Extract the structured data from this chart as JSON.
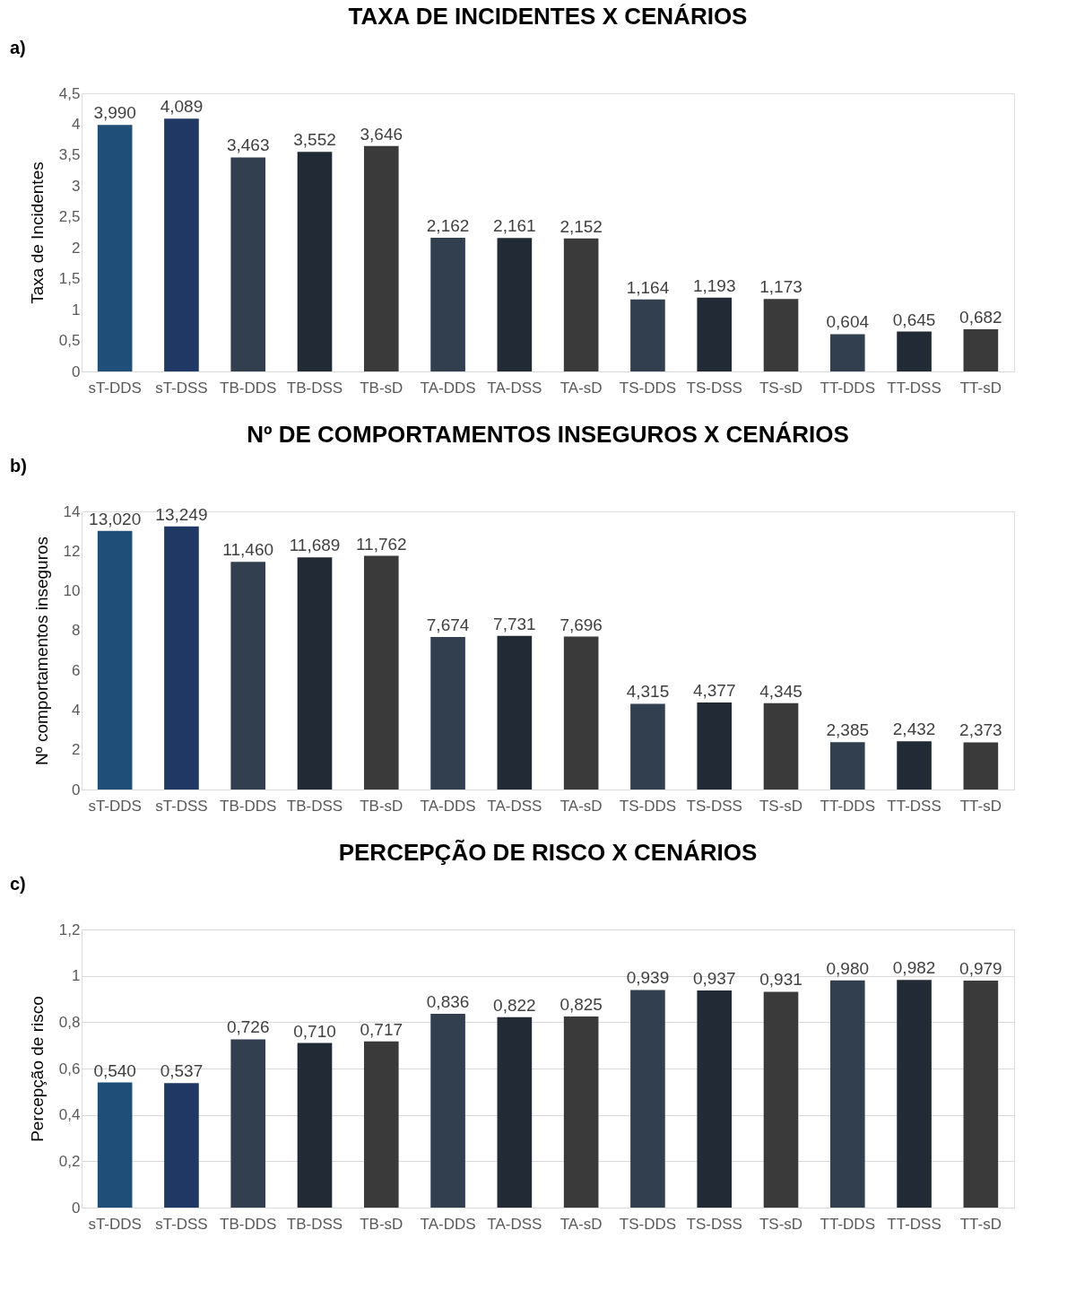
{
  "chart_data": [
    {
      "type": "bar",
      "title": "TAXA DE INCIDENTES X CENÁRIOS",
      "ylabel": "Taxa de Incidentes",
      "annotations": [
        "a)"
      ],
      "categories": [
        "sT-DDS",
        "sT-DSS",
        "TB-DDS",
        "TB-DSS",
        "TB-sD",
        "TA-DDS",
        "TA-DSS",
        "TA-sD",
        "TS-DDS",
        "TS-DSS",
        "TS-sD",
        "TT-DDS",
        "TT-DSS",
        "TT-sD"
      ],
      "values": [
        3.99,
        4.089,
        3.463,
        3.552,
        3.646,
        2.162,
        2.161,
        2.152,
        1.164,
        1.193,
        1.173,
        0.604,
        0.645,
        0.682
      ],
      "value_labels": [
        "3,990",
        "4,089",
        "3,463",
        "3,552",
        "3,646",
        "2,162",
        "2,161",
        "2,152",
        "1,164",
        "1,193",
        "1,173",
        "0,604",
        "0,645",
        "0,682"
      ],
      "colors": [
        "#1f4e79",
        "#1f3864",
        "#323f4f",
        "#222a35",
        "#3a3a3a",
        "#323f4f",
        "#222a35",
        "#3a3a3a",
        "#323f4f",
        "#222a35",
        "#3a3a3a",
        "#323f4f",
        "#222a35",
        "#3a3a3a"
      ],
      "ylim": [
        0,
        4.5
      ],
      "yticks": [
        0,
        {
          "value": 0.5,
          "label": "0,5"
        },
        1,
        {
          "value": 1.5,
          "label": "1,5"
        },
        2,
        {
          "value": 2.5,
          "label": "2,5"
        },
        3,
        {
          "value": 3.5,
          "label": "3,5"
        },
        4,
        {
          "value": 4.5,
          "label": "4,5"
        }
      ],
      "grid": false
    },
    {
      "type": "bar",
      "title": "Nº DE COMPORTAMENTOS INSEGUROS X CENÁRIOS",
      "ylabel": "Nº comportamentos inseguros",
      "annotations": [
        "b)"
      ],
      "categories": [
        "sT-DDS",
        "sT-DSS",
        "TB-DDS",
        "TB-DSS",
        "TB-sD",
        "TA-DDS",
        "TA-DSS",
        "TA-sD",
        "TS-DDS",
        "TS-DSS",
        "TS-sD",
        "TT-DDS",
        "TT-DSS",
        "TT-sD"
      ],
      "values": [
        13.02,
        13.249,
        11.46,
        11.689,
        11.762,
        7.674,
        7.731,
        7.696,
        4.315,
        4.377,
        4.345,
        2.385,
        2.432,
        2.373
      ],
      "value_labels": [
        "13,020",
        "13,249",
        "11,460",
        "11,689",
        "11,762",
        "7,674",
        "7,731",
        "7,696",
        "4,315",
        "4,377",
        "4,345",
        "2,385",
        "2,432",
        "2,373"
      ],
      "colors": [
        "#1f4e79",
        "#1f3864",
        "#323f4f",
        "#222a35",
        "#3a3a3a",
        "#323f4f",
        "#222a35",
        "#3a3a3a",
        "#323f4f",
        "#222a35",
        "#3a3a3a",
        "#323f4f",
        "#222a35",
        "#3a3a3a"
      ],
      "ylim": [
        0,
        14
      ],
      "yticks": [
        0,
        2,
        4,
        6,
        8,
        10,
        12,
        14
      ],
      "grid": false
    },
    {
      "type": "bar",
      "title": "PERCEPÇÃO DE RISCO X CENÁRIOS",
      "ylabel": "Percepção de risco",
      "annotations": [
        "c)"
      ],
      "categories": [
        "sT-DDS",
        "sT-DSS",
        "TB-DDS",
        "TB-DSS",
        "TB-sD",
        "TA-DDS",
        "TA-DSS",
        "TA-sD",
        "TS-DDS",
        "TS-DSS",
        "TS-sD",
        "TT-DDS",
        "TT-DSS",
        "TT-sD"
      ],
      "values": [
        0.54,
        0.537,
        0.726,
        0.71,
        0.717,
        0.836,
        0.822,
        0.825,
        0.939,
        0.937,
        0.931,
        0.98,
        0.982,
        0.979
      ],
      "value_labels": [
        "0,540",
        "0,537",
        "0,726",
        "0,710",
        "0,717",
        "0,836",
        "0,822",
        "0,825",
        "0,939",
        "0,937",
        "0,931",
        "0,980",
        "0,982",
        "0,979"
      ],
      "colors": [
        "#1f4e79",
        "#1f3864",
        "#323f4f",
        "#222a35",
        "#3a3a3a",
        "#323f4f",
        "#222a35",
        "#3a3a3a",
        "#323f4f",
        "#222a35",
        "#3a3a3a",
        "#323f4f",
        "#222a35",
        "#3a3a3a"
      ],
      "ylim": [
        0,
        1.2
      ],
      "yticks": [
        0,
        {
          "value": 0.2,
          "label": "0,2"
        },
        {
          "value": 0.4,
          "label": "0,4"
        },
        {
          "value": 0.6,
          "label": "0,6"
        },
        {
          "value": 0.8,
          "label": "0,8"
        },
        1,
        {
          "value": 1.2,
          "label": "1,2"
        }
      ],
      "grid": true
    }
  ]
}
